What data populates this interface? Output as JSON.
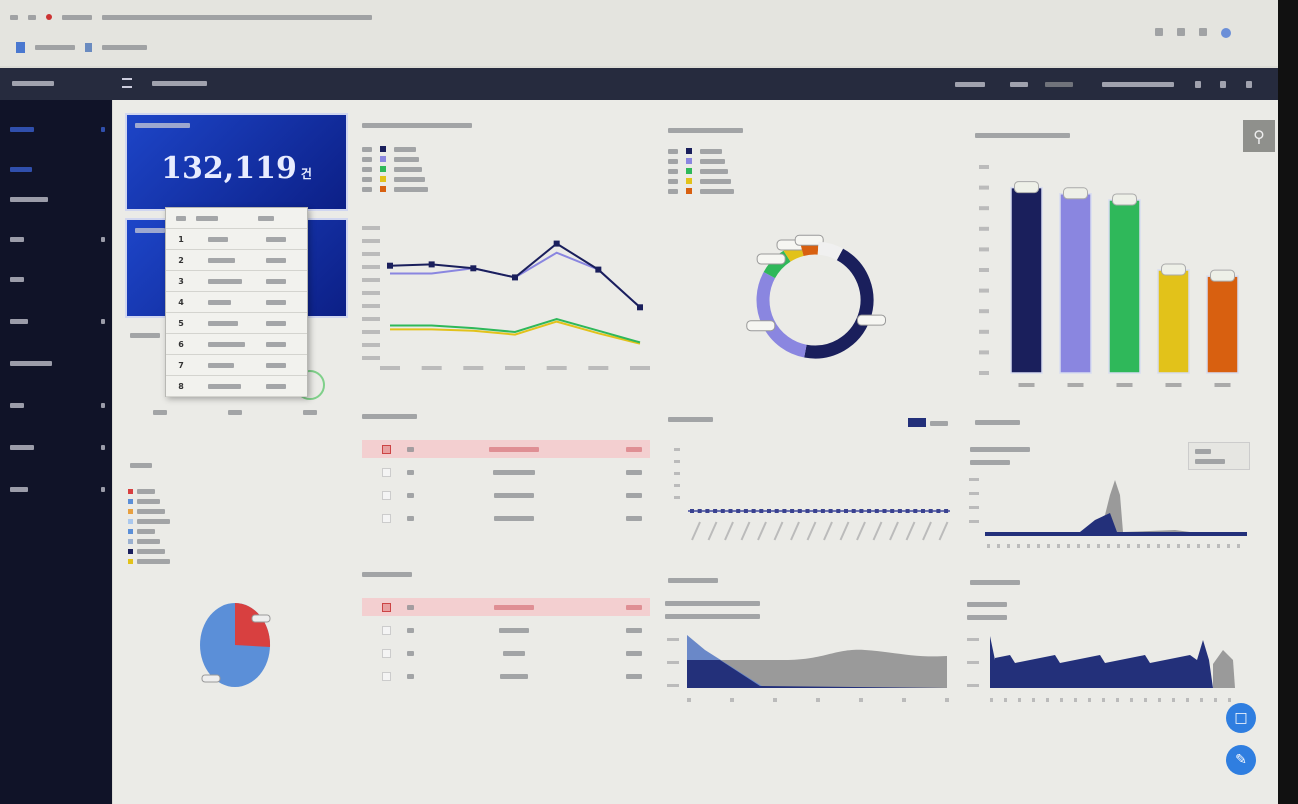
{
  "kpi": {
    "total_value": "132,119",
    "total_unit": "건"
  },
  "popup_table": {
    "ranks": [
      "1",
      "2",
      "3",
      "4",
      "5",
      "6",
      "7",
      "8"
    ]
  },
  "colors": {
    "navy": "#1a1f5c",
    "lavender": "#8a86e0",
    "green": "#2fb85a",
    "yellow": "#e2c21a",
    "orange": "#d86010",
    "sidebar_bg": "#101328",
    "topbar_bg": "#262b3e",
    "kpi_blue": "#1d45c8",
    "highlight_row": "#f3cfd0",
    "fab": "#2f7ee0"
  },
  "icons": {
    "menu": "hamburger-icon",
    "search": "search-icon",
    "fab_top": "chat-icon",
    "fab_bottom": "edit-icon"
  },
  "chart_data": [
    {
      "type": "line",
      "ylim": [
        0,
        100000
      ],
      "series": [
        {
          "color": "#1a1f5c",
          "values": [
            71000,
            72000,
            69000,
            62000,
            88000,
            68000,
            39000
          ]
        },
        {
          "color": "#8a86e0",
          "values": [
            65000,
            65000,
            69000,
            62000,
            81000,
            68000,
            39000
          ]
        },
        {
          "color": "#2fb85a",
          "values": [
            25000,
            25000,
            23000,
            20000,
            30000,
            21000,
            12000
          ]
        },
        {
          "color": "#e2c21a",
          "values": [
            22000,
            22000,
            21000,
            18000,
            28000,
            19000,
            11000
          ]
        }
      ]
    },
    {
      "type": "pie",
      "style": "donut",
      "values": [
        45,
        30,
        8,
        5,
        5,
        7
      ],
      "colors": [
        "#1a1f5c",
        "#8a86e0",
        "#2fb85a",
        "#e2c21a",
        "#d86010",
        "#f0f0f0"
      ]
    },
    {
      "type": "bar",
      "ylim": [
        0,
        1000
      ],
      "values": [
        900,
        870,
        840,
        500,
        470
      ],
      "colors": [
        "#1a1f5c",
        "#8a86e0",
        "#2fb85a",
        "#e2c21a",
        "#d86010"
      ]
    },
    {
      "type": "pie",
      "values": [
        82,
        18
      ],
      "colors": [
        "#5b8fd8",
        "#d84040"
      ]
    }
  ]
}
